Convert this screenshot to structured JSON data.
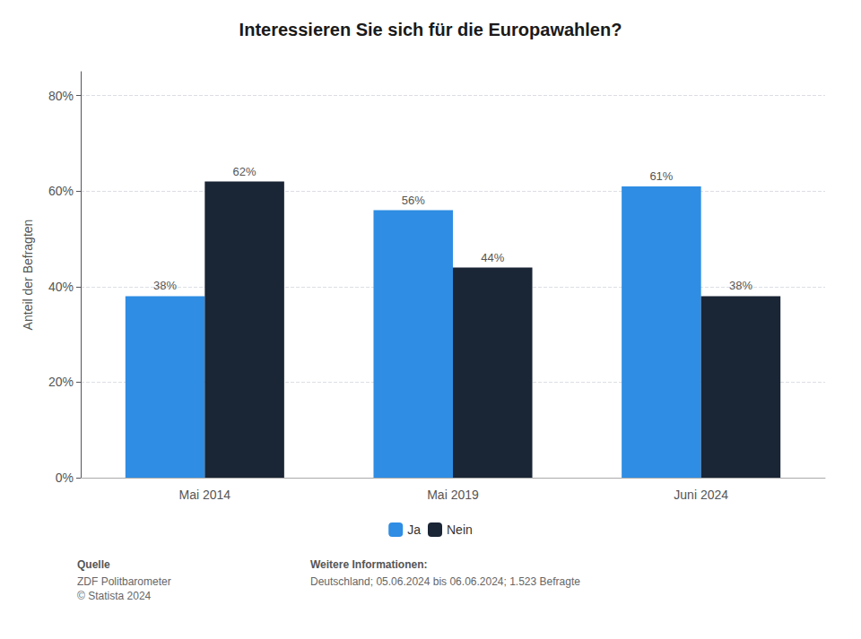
{
  "chart_data": {
    "type": "bar",
    "title": "Interessieren Sie sich für die Europawahlen?",
    "ylabel": "Anteil der Befragten",
    "categories": [
      "Mai 2014",
      "Mai 2019",
      "Juni 2024"
    ],
    "series": [
      {
        "name": "Ja",
        "color": "#2f8de4",
        "values": [
          0.38,
          0.56,
          0.61
        ],
        "value_labels": [
          "38%",
          "56%",
          "61%"
        ]
      },
      {
        "name": "Nein",
        "color": "#1a2535",
        "values": [
          0.62,
          0.44,
          0.38
        ],
        "value_labels": [
          "62%",
          "44%",
          "38%"
        ]
      }
    ],
    "ylim": [
      0,
      0.85
    ],
    "yticks": [
      {
        "value": 0,
        "label": "0%"
      },
      {
        "value": 0.2,
        "label": "20%"
      },
      {
        "value": 0.4,
        "label": "40%"
      },
      {
        "value": 0.6,
        "label": "60%"
      },
      {
        "value": 0.8,
        "label": "80%"
      }
    ],
    "grid": true,
    "legend": "bottom",
    "data_labels": true,
    "annotations": [
      "Quelle",
      "ZDF Politbarometer\n© Statista 2024",
      "Weitere Informationen:",
      "Deutschland; 05.06.2024 bis 06.06.2024; 1.523 Befragte"
    ]
  }
}
